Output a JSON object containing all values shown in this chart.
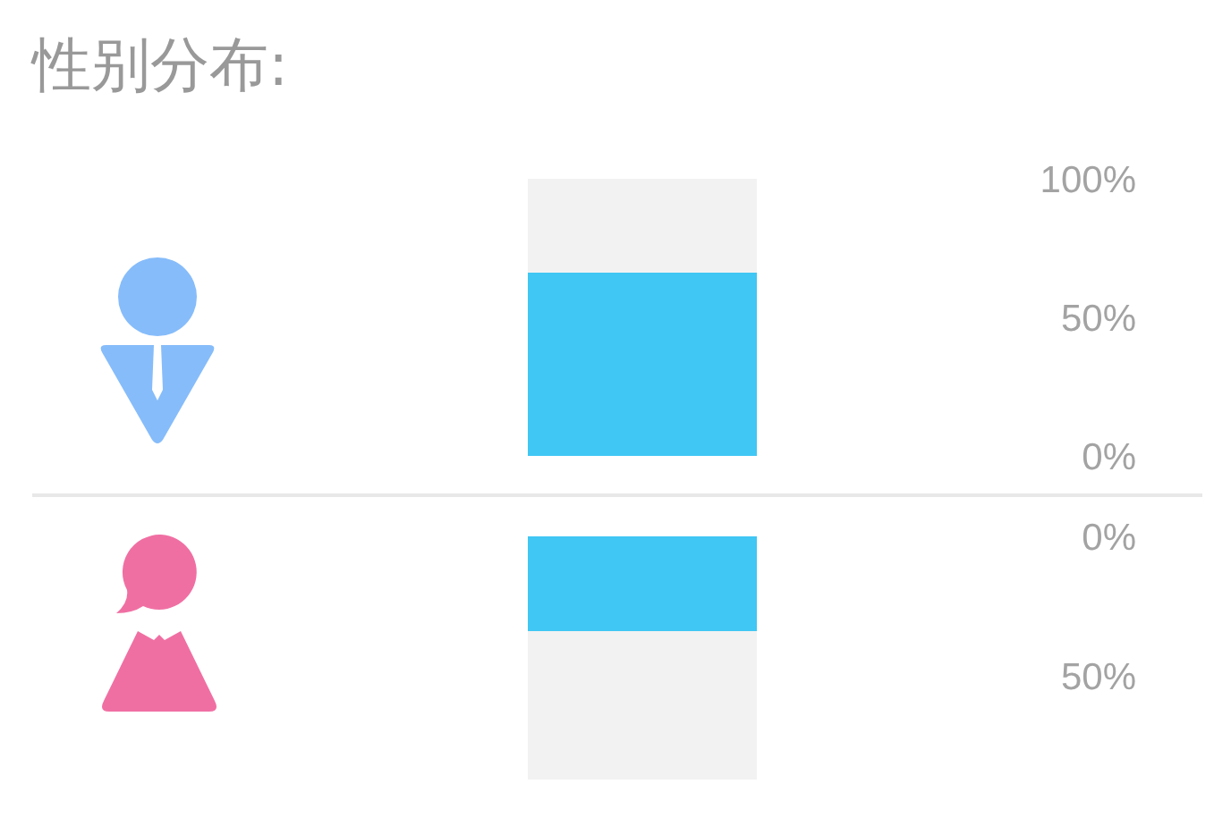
{
  "chart_data": [
    {
      "type": "bar",
      "title": "性别分布:",
      "categories": [
        null
      ],
      "values": [
        66
      ],
      "color": "#40c7f4",
      "ylim": [
        0,
        100
      ],
      "yticks": [
        {
          "value": 0,
          "label": "0%"
        },
        {
          "value": 50,
          "label": "50%"
        },
        {
          "value": 100,
          "label": "100%"
        }
      ],
      "tick_labels": "y"
    },
    {
      "type": "bar",
      "categories": [
        null
      ],
      "values": [
        34
      ],
      "color": "#40c7f4",
      "ylim": [
        87,
        0
      ],
      "yticks": [
        {
          "value": 0,
          "label": "0%"
        },
        {
          "value": 50,
          "label": "50%"
        }
      ],
      "tick_labels": "y"
    }
  ]
}
